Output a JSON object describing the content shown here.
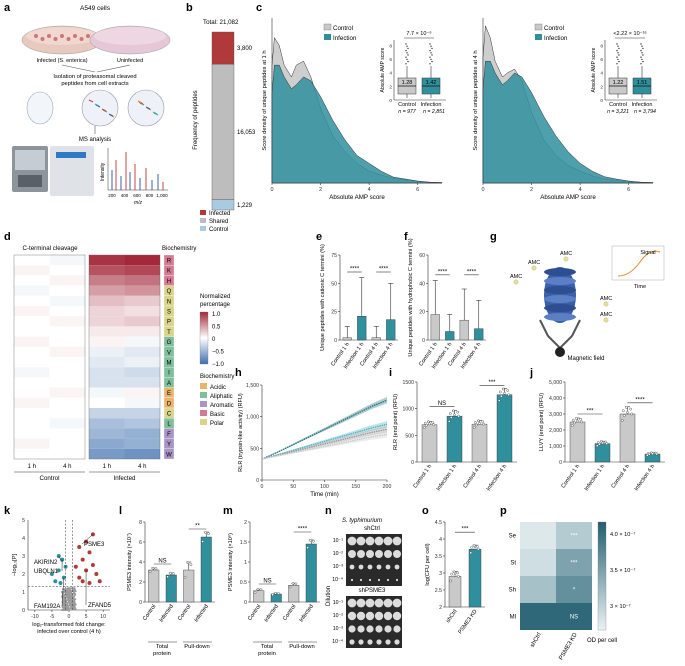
{
  "colors": {
    "infection": "#2f8f9d",
    "control": "#c9c9c9",
    "control_dark": "#8a8a8a",
    "infected_red": "#b03a3a",
    "shared_grey": "#bdbdbd",
    "control_blue": "#a9cbe2",
    "heat_red": "#a3283a",
    "heat_blue": "#3d6fae"
  },
  "panels": {
    "a": {
      "label": "a",
      "cell_line": "A549 cells",
      "infected": "Infected (S. enterica)",
      "uninfected": "Uninfected",
      "isolation": "Isolation of proteasomal cleaved",
      "isolation2": "peptides from cell extracts",
      "ms": "MS analysis",
      "intensity": "Intensity",
      "mz": "m/z",
      "mz_ticks": [
        "200",
        "400",
        "600",
        "800",
        "1,000"
      ]
    },
    "b": {
      "label": "b",
      "total": "Total: 21,082",
      "ylabel": "Frequency of peptides",
      "legend": [
        "Infected",
        "Shared",
        "Control"
      ]
    },
    "c": {
      "label": "c",
      "legend": [
        "Control",
        "Infection"
      ],
      "ylabel_1h": "Score density of unique peptides at 1 h",
      "ylabel_4h": "Score density of unique peptides at 4 h",
      "xlabel": "Absolute AMP score",
      "inset_ylabel": "Absolute AMP score",
      "p_1h": "7.7 × 10⁻⁶",
      "p_4h": "<2.22 × 10⁻¹⁶",
      "median_ctrl_1h": "1.28",
      "median_inf_1h": "1.42",
      "median_ctrl_4h": "1.22",
      "median_inf_4h": "1.51",
      "n_ctrl_1h": "n = 977",
      "n_inf_1h": "n = 2,851",
      "n_ctrl_4h": "n = 3,221",
      "n_inf_4h": "n = 3,794",
      "inset_x": [
        "Control",
        "Infection"
      ]
    },
    "d": {
      "label": "d",
      "title": "C-terminal cleavage",
      "biochem": "Biochemistry",
      "legend_title": "Normalized",
      "legend_title2": "percentage",
      "legend_ticks": [
        "1.0",
        "0.5",
        "0",
        "−0.5",
        "−1.0"
      ],
      "biochem_legend": [
        "Acidic",
        "Aliphatic",
        "Aromatic",
        "Basic",
        "Polar"
      ],
      "time_labels": [
        "1 h",
        "4 h",
        "1 h",
        "4 h"
      ],
      "group_labels": [
        "Control",
        "Infected"
      ],
      "residues": [
        "R",
        "K",
        "H",
        "Q",
        "N",
        "S",
        "P",
        "T",
        "G",
        "V",
        "M",
        "I",
        "A",
        "E",
        "D",
        "C",
        "L",
        "F",
        "Y",
        "W"
      ]
    },
    "e": {
      "label": "e",
      "ylabel": "Unique peptides with cationic C termini (%)",
      "sig": [
        "****",
        "****"
      ],
      "cats": [
        "Control 1 h",
        "Infection 1 h",
        "Control 4 h",
        "Infection 4 h"
      ]
    },
    "f": {
      "label": "f",
      "ylabel": "Unique peptides with hydrophobic C termini (%)",
      "sig": [
        "****",
        "****"
      ],
      "cats": [
        "Control 1 h",
        "Infection 1 h",
        "Control 4 h",
        "Infection 4 h"
      ]
    },
    "g": {
      "label": "g",
      "amc": "AMC",
      "signal": "Signal",
      "time": "Time",
      "magnetic": "Magnetic field"
    },
    "h": {
      "label": "h",
      "ylabel": "RLR (trypsin-like activity) (RFU)",
      "xlabel": "Time (min)"
    },
    "i": {
      "label": "i",
      "ylabel": "RLR (end point) (RFU)",
      "sig": [
        "NS",
        "***"
      ],
      "cats": [
        "Control 1 h",
        "Infection 1 h",
        "Control 4 h",
        "Infection 4 h"
      ]
    },
    "j": {
      "label": "j",
      "ylabel": "LLVY (end point) (RFU)",
      "sig": [
        "***",
        "****"
      ],
      "cats": [
        "Control 1 h",
        "Infection 1 h",
        "Control 4 h",
        "Infection 4 h"
      ]
    },
    "k": {
      "label": "k",
      "ylabel": "−log₁₀[P]",
      "xlabel": "log₂-transformed fold change:",
      "xlabel2": "infected over control (4 h)",
      "genes": [
        "AKIRIN2",
        "UBQLN1",
        "FAM192A",
        "PSME3",
        "ZFAND5"
      ]
    },
    "l": {
      "label": "l",
      "ylabel": "PSME3 intensity (×10⁷)",
      "sig": [
        "NS",
        "**"
      ],
      "cats": [
        "Control",
        "Infected",
        "Control",
        "Infected"
      ],
      "groups": [
        "Total",
        "protein",
        "Pull-down"
      ]
    },
    "m": {
      "label": "m",
      "ylabel": "PSME3 intensity (×10⁶)",
      "sig": [
        "NS",
        "****"
      ],
      "cats": [
        "Control",
        "Infected",
        "Control",
        "Infected"
      ],
      "groups": [
        "Total",
        "protein",
        "Pull-down"
      ]
    },
    "n": {
      "label": "n",
      "organism": "S. typhimurium",
      "sh_ctrl": "shCtrl",
      "sh_psme3": "shPSME3",
      "dilution": "Dilution",
      "dilutions": [
        "10⁻¹",
        "10⁻²",
        "10⁻³",
        "10⁻⁴"
      ]
    },
    "o": {
      "label": "o",
      "ylabel": "log(CFU per cell)",
      "sig": "***",
      "cats": [
        "shCtrl",
        "PSME3 KD"
      ]
    },
    "p": {
      "label": "p",
      "rows": [
        "Se",
        "St",
        "Sh",
        "Ml"
      ],
      "cols": [
        "shCtrl",
        "PSME3 KD"
      ],
      "cell_sig": [
        "***",
        "***",
        "*",
        "NS"
      ],
      "colorbar_label": "OD per cell",
      "colorbar_ticks": [
        "4.0 × 10⁻⁷",
        "3.5 × 10⁻⁷",
        "3 × 10⁻⁷"
      ]
    }
  },
  "chart_data": [
    {
      "id": "b",
      "type": "bar",
      "title": "Total: 21,082",
      "categories": [
        "Control",
        "Shared",
        "Infected"
      ],
      "values": [
        1229,
        16053,
        3800
      ],
      "ylabel": "Frequency of peptides",
      "ylim": [
        0,
        21082
      ]
    },
    {
      "id": "c1h",
      "type": "area",
      "xlabel": "Absolute AMP score",
      "ylabel": "Score density of unique peptides at 1 h",
      "xlim": [
        0,
        7
      ],
      "ylim": [
        0,
        0.42
      ],
      "x": [
        0,
        0.1,
        0.3,
        0.5,
        0.8,
        1.0,
        1.3,
        1.6,
        2.0,
        2.5,
        3.0,
        3.5,
        4.0,
        4.5,
        5.0,
        5.5,
        6.0,
        6.5,
        7.0
      ],
      "series": [
        {
          "name": "Control",
          "values": [
            0.3,
            0.37,
            0.35,
            0.3,
            0.27,
            0.3,
            0.31,
            0.27,
            0.19,
            0.12,
            0.08,
            0.05,
            0.03,
            0.02,
            0.012,
            0.008,
            0.004,
            0.002,
            0.001
          ]
        },
        {
          "name": "Infection",
          "values": [
            0.23,
            0.3,
            0.3,
            0.27,
            0.24,
            0.25,
            0.27,
            0.26,
            0.22,
            0.16,
            0.11,
            0.07,
            0.05,
            0.03,
            0.015,
            0.01,
            0.005,
            0.002,
            0.001
          ]
        }
      ]
    },
    {
      "id": "c4h",
      "type": "area",
      "xlabel": "Absolute AMP score",
      "ylabel": "Score density of unique peptides at 4 h",
      "xlim": [
        0,
        7
      ],
      "ylim": [
        0,
        0.42
      ],
      "x": [
        0,
        0.1,
        0.3,
        0.5,
        0.8,
        1.0,
        1.3,
        1.6,
        2.0,
        2.5,
        3.0,
        3.5,
        4.0,
        4.5,
        5.0,
        5.5,
        6.0,
        6.5,
        7.0
      ],
      "series": [
        {
          "name": "Control",
          "values": [
            0.32,
            0.4,
            0.37,
            0.31,
            0.27,
            0.28,
            0.29,
            0.26,
            0.18,
            0.11,
            0.07,
            0.045,
            0.03,
            0.018,
            0.01,
            0.006,
            0.003,
            0.002,
            0.001
          ]
        },
        {
          "name": "Infection",
          "values": [
            0.24,
            0.31,
            0.31,
            0.28,
            0.25,
            0.26,
            0.28,
            0.27,
            0.23,
            0.17,
            0.12,
            0.08,
            0.05,
            0.03,
            0.016,
            0.01,
            0.005,
            0.002,
            0.001
          ]
        }
      ]
    },
    {
      "id": "d",
      "type": "heatmap",
      "rows": [
        "R",
        "K",
        "H",
        "Q",
        "N",
        "S",
        "P",
        "T",
        "G",
        "V",
        "M",
        "I",
        "A",
        "E",
        "D",
        "C",
        "L",
        "F",
        "Y",
        "W"
      ],
      "cols": [
        "Control 1 h",
        "Control 4 h",
        "Infected 1 h",
        "Infected 4 h"
      ],
      "values": [
        [
          0.0,
          -0.05,
          0.95,
          1.0
        ],
        [
          0.05,
          0.0,
          0.8,
          0.85
        ],
        [
          0.0,
          0.05,
          0.6,
          0.65
        ],
        [
          -0.05,
          0.0,
          0.45,
          0.5
        ],
        [
          0.0,
          -0.05,
          0.3,
          0.25
        ],
        [
          0.05,
          0.0,
          0.2,
          0.15
        ],
        [
          0.0,
          0.05,
          0.2,
          0.25
        ],
        [
          0.0,
          0.0,
          0.1,
          0.1
        ],
        [
          0.05,
          0.0,
          0.05,
          -0.05
        ],
        [
          0.0,
          0.05,
          -0.1,
          -0.15
        ],
        [
          0.0,
          0.0,
          -0.15,
          -0.1
        ],
        [
          -0.05,
          0.0,
          -0.2,
          -0.25
        ],
        [
          0.0,
          0.0,
          -0.2,
          -0.2
        ],
        [
          0.0,
          0.05,
          -0.05,
          0.05
        ],
        [
          0.05,
          0.0,
          0.0,
          -0.05
        ],
        [
          0.0,
          0.0,
          -0.3,
          -0.3
        ],
        [
          0.0,
          -0.05,
          -0.45,
          -0.4
        ],
        [
          0.0,
          0.0,
          -0.5,
          -0.55
        ],
        [
          0.05,
          0.0,
          -0.6,
          -0.55
        ],
        [
          0.0,
          0.0,
          -0.7,
          -0.75
        ]
      ]
    },
    {
      "id": "e",
      "type": "bar",
      "categories": [
        "Control 1 h",
        "Infection 1 h",
        "Control 4 h",
        "Infection 4 h"
      ],
      "values": [
        2,
        21,
        2,
        18
      ],
      "errors": [
        10,
        34,
        10,
        32
      ],
      "ylim": [
        0,
        75
      ]
    },
    {
      "id": "f",
      "type": "bar",
      "categories": [
        "Control 1 h",
        "Infection 1 h",
        "Control 4 h",
        "Infection 4 h"
      ],
      "values": [
        18,
        6,
        14,
        8
      ],
      "errors": [
        24,
        12,
        22,
        20
      ],
      "ylim": [
        0,
        60
      ]
    },
    {
      "id": "h",
      "type": "line",
      "xlabel": "Time (min)",
      "ylabel": "RLR (trypsin-like activity) (RFU)",
      "x": [
        0,
        25,
        50,
        75,
        100,
        125,
        150,
        175,
        200
      ],
      "xlim": [
        0,
        200
      ],
      "ylim": [
        0,
        1500
      ],
      "series": [
        {
          "name": "Infection 4 h",
          "values": [
            330,
            440,
            560,
            680,
            800,
            920,
            1040,
            1160,
            1260
          ]
        },
        {
          "name": "Infection 1 h",
          "values": [
            330,
            400,
            470,
            540,
            610,
            680,
            750,
            820,
            880
          ]
        },
        {
          "name": "Control 4 h",
          "values": [
            330,
            390,
            450,
            510,
            570,
            630,
            690,
            750,
            800
          ]
        },
        {
          "name": "Control 1 h",
          "values": [
            330,
            380,
            430,
            480,
            530,
            580,
            630,
            680,
            720
          ]
        }
      ]
    },
    {
      "id": "i",
      "type": "bar",
      "categories": [
        "Control 1 h",
        "Infection 1 h",
        "Control 4 h",
        "Infection 4 h"
      ],
      "values": [
        700,
        860,
        710,
        1260
      ],
      "errors": [
        60,
        110,
        70,
        120
      ],
      "ylim": [
        0,
        1500
      ]
    },
    {
      "id": "j",
      "type": "bar",
      "categories": [
        "Control 1 h",
        "Infection 1 h",
        "Control 4 h",
        "Infection 4 h"
      ],
      "values": [
        2500,
        1150,
        3000,
        500
      ],
      "errors": [
        250,
        150,
        450,
        80
      ],
      "ylim": [
        0,
        5000
      ]
    },
    {
      "id": "k",
      "type": "scatter",
      "xlabel": "log₂-transformed fold change: infected over control (4 h)",
      "ylabel": "−log₁₀[P]",
      "xlim": [
        -12,
        12
      ],
      "ylim": [
        0,
        5
      ],
      "points_up": [
        [
          3,
          3.5
        ],
        [
          5,
          3.8
        ],
        [
          6,
          3.2
        ],
        [
          4,
          2.8
        ],
        [
          7,
          2.5
        ],
        [
          8,
          2.0
        ],
        [
          5,
          2.2
        ],
        [
          3,
          1.8
        ],
        [
          9,
          1.6
        ],
        [
          6,
          1.5
        ],
        [
          2,
          2.4
        ],
        [
          4,
          1.6
        ],
        [
          7,
          4.2
        ]
      ],
      "points_down": [
        [
          -2,
          2.8
        ],
        [
          -3,
          2.2
        ],
        [
          -1.5,
          1.8
        ],
        [
          -4,
          1.6
        ],
        [
          -2.5,
          1.5
        ],
        [
          -5,
          2.0
        ],
        [
          -1,
          2.4
        ],
        [
          -3,
          3.0
        ]
      ],
      "thresholds": {
        "y": 1.3,
        "x": [
          -1,
          1
        ]
      }
    },
    {
      "id": "l",
      "type": "bar",
      "categories": [
        "Total protein Control",
        "Total protein Infected",
        "Pull-down Control",
        "Pull-down Infected"
      ],
      "values": [
        3.2,
        2.7,
        3.2,
        6.5
      ],
      "errors": [
        0.2,
        0.2,
        0.8,
        0.5
      ],
      "ylim": [
        0,
        8
      ]
    },
    {
      "id": "m",
      "type": "bar",
      "categories": [
        "Total protein Control",
        "Total protein Infected",
        "Pull-down Control",
        "Pull-down Infected"
      ],
      "values": [
        0.28,
        0.2,
        0.42,
        1.45
      ],
      "errors": [
        0.04,
        0.02,
        0.05,
        0.1
      ],
      "ylim": [
        0,
        2.0
      ]
    },
    {
      "id": "o",
      "type": "bar",
      "categories": [
        "shCtrl",
        "PSME3 KD"
      ],
      "values": [
        2.9,
        3.7
      ],
      "errors": [
        0.15,
        0.12
      ],
      "ylim": [
        2.0,
        4.5
      ]
    },
    {
      "id": "p",
      "type": "heatmap",
      "rows": [
        "Se",
        "St",
        "Sh",
        "Ml"
      ],
      "cols": [
        "shCtrl",
        "PSME3 KD"
      ],
      "values": [
        [
          2.9e-07,
          3.2e-07
        ],
        [
          3e-07,
          3.6e-07
        ],
        [
          3.3e-07,
          3.8e-07
        ],
        [
          4.2e-07,
          4.2e-07
        ]
      ],
      "vlim": [
        2.8e-07,
        4.3e-07
      ]
    }
  ]
}
